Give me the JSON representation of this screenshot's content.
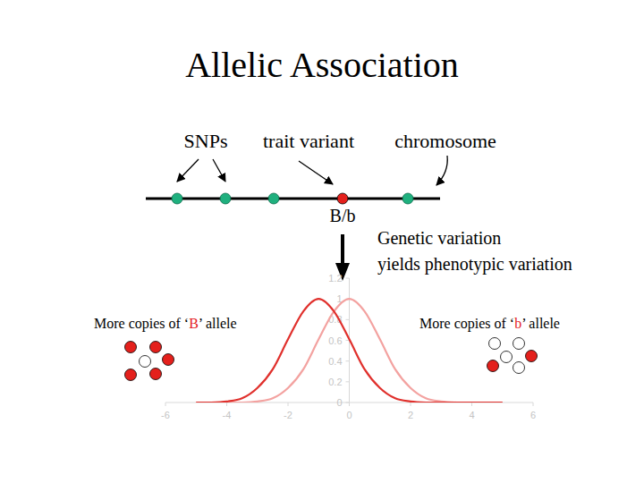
{
  "title": "Allelic Association",
  "labels": {
    "snps": "SNPs",
    "trait_variant": "trait variant",
    "chromosome": "chromosome",
    "genotype": "B/b",
    "note": [
      "Genetic variation",
      "yields phenotypic variation"
    ],
    "left": "More copies of ‘B’ allele",
    "right": "More copies of ‘b’ allele"
  },
  "chart_data": {
    "type": "line",
    "xlim": [
      -6,
      6
    ],
    "ylim": [
      0,
      1.2
    ],
    "xticks": [
      -6,
      -4,
      -2,
      0,
      2,
      4,
      6
    ],
    "yticks": [
      0,
      0.2,
      0.4,
      0.6,
      0.8,
      1,
      1.2
    ],
    "x": [
      -5,
      -4.5,
      -4,
      -3.5,
      -3,
      -2.5,
      -2,
      -1.5,
      -1,
      -0.5,
      0,
      0.5,
      1,
      1.5,
      2,
      2.5,
      3,
      3.5,
      4,
      4.5,
      5
    ],
    "series": [
      {
        "color": "#e0302c",
        "values": [
          0,
          0,
          0.01,
          0.04,
          0.14,
          0.32,
          0.61,
          0.88,
          1,
          0.88,
          0.61,
          0.32,
          0.14,
          0.04,
          0.01,
          0,
          0,
          0,
          0,
          0,
          0
        ]
      },
      {
        "color": "#f3a2a0",
        "values": [
          0,
          0,
          0,
          0,
          0.01,
          0.04,
          0.14,
          0.32,
          0.61,
          0.88,
          1,
          0.88,
          0.61,
          0.32,
          0.14,
          0.04,
          0.01,
          0,
          0,
          0,
          0
        ]
      }
    ]
  }
}
